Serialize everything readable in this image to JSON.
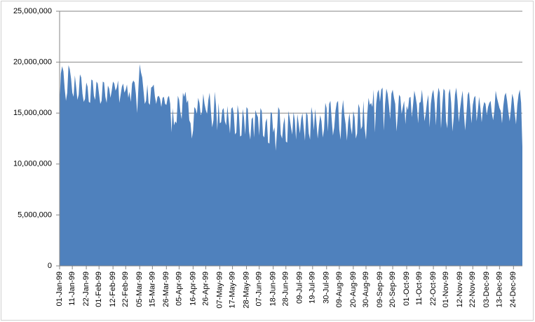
{
  "chart_data": {
    "type": "area",
    "color": "#4f81bd",
    "grid": true,
    "ylim": [
      0,
      25000000
    ],
    "yticks": [
      {
        "value": 0,
        "label": "0"
      },
      {
        "value": 5000000,
        "label": "5,000,000"
      },
      {
        "value": 10000000,
        "label": "10,000,000"
      },
      {
        "value": 15000000,
        "label": "15,000,000"
      },
      {
        "value": 20000000,
        "label": "20,000,000"
      },
      {
        "value": 25000000,
        "label": "25,000,000"
      }
    ],
    "categories": [
      "01-Jan-99",
      null,
      null,
      null,
      null,
      null,
      null,
      null,
      null,
      null,
      "11-Jan-99",
      null,
      null,
      null,
      null,
      null,
      null,
      null,
      null,
      null,
      null,
      "22-Jan-99",
      null,
      null,
      null,
      null,
      null,
      null,
      null,
      null,
      null,
      "01-Feb-99",
      null,
      null,
      null,
      null,
      null,
      null,
      null,
      null,
      null,
      null,
      "12-Feb-99",
      null,
      null,
      null,
      null,
      null,
      null,
      null,
      null,
      null,
      "22-Feb-99",
      null,
      null,
      null,
      null,
      null,
      null,
      null,
      null,
      null,
      null,
      "05-Mar-99",
      null,
      null,
      null,
      null,
      null,
      null,
      null,
      null,
      null,
      "15-Mar-99",
      null,
      null,
      null,
      null,
      null,
      null,
      null,
      null,
      null,
      null,
      "26-Mar-99",
      null,
      null,
      null,
      null,
      null,
      null,
      null,
      null,
      null,
      "05-Apr-99",
      null,
      null,
      null,
      null,
      null,
      null,
      null,
      null,
      null,
      null,
      "16-Apr-99",
      null,
      null,
      null,
      null,
      null,
      null,
      null,
      null,
      null,
      "26-Apr-99",
      null,
      null,
      null,
      null,
      null,
      null,
      null,
      null,
      null,
      null,
      "07-May-99",
      null,
      null,
      null,
      null,
      null,
      null,
      null,
      null,
      null,
      "17-May-99",
      null,
      null,
      null,
      null,
      null,
      null,
      null,
      null,
      null,
      null,
      "28-May-99",
      null,
      null,
      null,
      null,
      null,
      null,
      null,
      null,
      null,
      "07-Jun-99",
      null,
      null,
      null,
      null,
      null,
      null,
      null,
      null,
      null,
      null,
      "18-Jun-99",
      null,
      null,
      null,
      null,
      null,
      null,
      null,
      null,
      null,
      "28-Jun-99",
      null,
      null,
      null,
      null,
      null,
      null,
      null,
      null,
      null,
      null,
      "09-Jul-99",
      null,
      null,
      null,
      null,
      null,
      null,
      null,
      null,
      null,
      "19-Jul-99",
      null,
      null,
      null,
      null,
      null,
      null,
      null,
      null,
      null,
      null,
      "30-Jul-99",
      null,
      null,
      null,
      null,
      null,
      null,
      null,
      null,
      null,
      "09-Aug-99",
      null,
      null,
      null,
      null,
      null,
      null,
      null,
      null,
      null,
      null,
      "20-Aug-99",
      null,
      null,
      null,
      null,
      null,
      null,
      null,
      null,
      null,
      "30-Aug-99",
      null,
      null,
      null,
      null,
      null,
      null,
      null,
      null,
      null,
      null,
      "09-Sep-99",
      null,
      null,
      null,
      null,
      null,
      null,
      null,
      null,
      null,
      "20-Sep-99",
      null,
      null,
      null,
      null,
      null,
      null,
      null,
      null,
      null,
      null,
      "01-Oct-99",
      null,
      null,
      null,
      null,
      null,
      null,
      null,
      null,
      null,
      "11-Oct-99",
      null,
      null,
      null,
      null,
      null,
      null,
      null,
      null,
      null,
      null,
      "22-Oct-99",
      null,
      null,
      null,
      null,
      null,
      null,
      null,
      null,
      null,
      "01-Nov-99",
      null,
      null,
      null,
      null,
      null,
      null,
      null,
      null,
      null,
      null,
      "12-Nov-99",
      null,
      null,
      null,
      null,
      null,
      null,
      null,
      null,
      null,
      "22-Nov-99",
      null,
      null,
      null,
      null,
      null,
      null,
      null,
      null,
      null,
      null,
      "03-Dec-99",
      null,
      null,
      null,
      null,
      null,
      null,
      null,
      null,
      null,
      "13-Dec-99",
      null,
      null,
      null,
      null,
      null,
      null,
      null,
      null,
      null,
      null,
      "24-Dec-99",
      null,
      null,
      null,
      null,
      null,
      null,
      null
    ],
    "values": [
      16000000.0,
      18900000.0,
      19600000.0,
      19100000.0,
      17400000.0,
      16200000.0,
      17000000.0,
      19700000.0,
      19300000.0,
      18400000.0,
      17000000.0,
      16600000.0,
      18700000.0,
      17600000.0,
      16300000.0,
      16800000.0,
      18800000.0,
      18500000.0,
      16900000.0,
      16100000.0,
      16400000.0,
      18000000.0,
      17600000.0,
      16100000.0,
      16000000.0,
      18300000.0,
      18200000.0,
      16700000.0,
      16300000.0,
      18100000.0,
      17900000.0,
      16900000.0,
      15900000.0,
      16200000.0,
      18100000.0,
      18000000.0,
      16600000.0,
      16000000.0,
      17700000.0,
      17400000.0,
      16500000.0,
      17200000.0,
      18100000.0,
      17900000.0,
      17200000.0,
      17500000.0,
      18200000.0,
      16000000.0,
      16800000.0,
      17600000.0,
      17900000.0,
      17000000.0,
      17300000.0,
      17800000.0,
      16500000.0,
      17100000.0,
      16100000.0,
      17900000.0,
      18200000.0,
      18000000.0,
      16900000.0,
      15000000.0,
      17500000.0,
      19800000.0,
      19000000.0,
      18500000.0,
      17200000.0,
      15900000.0,
      16200000.0,
      17800000.0,
      16000000.0,
      15800000.0,
      17500000.0,
      17600000.0,
      17800000.0,
      16600000.0,
      15900000.0,
      16600000.0,
      16700000.0,
      16400000.0,
      15600000.0,
      16500000.0,
      16600000.0,
      15900000.0,
      15800000.0,
      16500000.0,
      16700000.0,
      15900000.0,
      13100000.0,
      15500000.0,
      13800000.0,
      14200000.0,
      14000000.0,
      16700000.0,
      16300000.0,
      15100000.0,
      14400000.0,
      17000000.0,
      16600000.0,
      17100000.0,
      16000000.0,
      16300000.0,
      14300000.0,
      14000000.0,
      12500000.0,
      13300000.0,
      15600000.0,
      15400000.0,
      14900000.0,
      16500000.0,
      16000000.0,
      14800000.0,
      15100000.0,
      16900000.0,
      15900000.0,
      15300000.0,
      14900000.0,
      16300000.0,
      17000000.0,
      15200000.0,
      13600000.0,
      14300000.0,
      17100000.0,
      15800000.0,
      13300000.0,
      16000000.0,
      14000000.0,
      14100000.0,
      15300000.0,
      15500000.0,
      14200000.0,
      13800000.0,
      15700000.0,
      14300000.0,
      13000000.0,
      15400000.0,
      15600000.0,
      14900000.0,
      12900000.0,
      13100000.0,
      15800000.0,
      15000000.0,
      12700000.0,
      12800000.0,
      15400000.0,
      14600000.0,
      12900000.0,
      15600000.0,
      15400000.0,
      13200000.0,
      12400000.0,
      14400000.0,
      14600000.0,
      12600000.0,
      15300000.0,
      14900000.0,
      14600000.0,
      12800000.0,
      15500000.0,
      15200000.0,
      12800000.0,
      12600000.0,
      14100000.0,
      14500000.0,
      12100000.0,
      12000000.0,
      15100000.0,
      15000000.0,
      13100000.0,
      13600000.0,
      11300000.0,
      13200000.0,
      15600000.0,
      15300000.0,
      12900000.0,
      12500000.0,
      13900000.0,
      14600000.0,
      12200000.0,
      12100000.0,
      15200000.0,
      14500000.0,
      13600000.0,
      12900000.0,
      15100000.0,
      14300000.0,
      12400000.0,
      14900000.0,
      14000000.0,
      13000000.0,
      14400000.0,
      15000000.0,
      13600000.0,
      12300000.0,
      15100000.0,
      14800000.0,
      13000000.0,
      12400000.0,
      15600000.0,
      14900000.0,
      13300000.0,
      15400000.0,
      14100000.0,
      12500000.0,
      13800000.0,
      14800000.0,
      14200000.0,
      12600000.0,
      13400000.0,
      16000000.0,
      15500000.0,
      13200000.0,
      15900000.0,
      16200000.0,
      14400000.0,
      12800000.0,
      13600000.0,
      15200000.0,
      16000000.0,
      16200000.0,
      13400000.0,
      12400000.0,
      15200000.0,
      16300000.0,
      14800000.0,
      13900000.0,
      12300000.0,
      14100000.0,
      15000000.0,
      13600000.0,
      12900000.0,
      15200000.0,
      14600000.0,
      12500000.0,
      13000000.0,
      15900000.0,
      15500000.0,
      13400000.0,
      13700000.0,
      16200000.0,
      13500000.0,
      12400000.0,
      14900000.0,
      16500000.0,
      15800000.0,
      16000000.0,
      15600000.0,
      17300000.0,
      13100000.0,
      15900000.0,
      17000000.0,
      17300000.0,
      16100000.0,
      17300000.0,
      17500000.0,
      13300000.0,
      15900000.0,
      17400000.0,
      16900000.0,
      15800000.0,
      14400000.0,
      16900000.0,
      17300000.0,
      16500000.0,
      15900000.0,
      13200000.0,
      14800000.0,
      16800000.0,
      16600000.0,
      14900000.0,
      15600000.0,
      16200000.0,
      13900000.0,
      15700000.0,
      15300000.0,
      16500000.0,
      16600000.0,
      14600000.0,
      15800000.0,
      17200000.0,
      16600000.0,
      15800000.0,
      14000000.0,
      16000000.0,
      16100000.0,
      17300000.0,
      15900000.0,
      14200000.0,
      15000000.0,
      16100000.0,
      16800000.0,
      13600000.0,
      15900000.0,
      16900000.0,
      17300000.0,
      16000000.0,
      13800000.0,
      16400000.0,
      17500000.0,
      17000000.0,
      13500000.0,
      15800000.0,
      17400000.0,
      17200000.0,
      14200000.0,
      13500000.0,
      16900000.0,
      17400000.0,
      16000000.0,
      13200000.0,
      14600000.0,
      16800000.0,
      17500000.0,
      16200000.0,
      14100000.0,
      15400000.0,
      16400000.0,
      17200000.0,
      15000000.0,
      13300000.0,
      14900000.0,
      16800000.0,
      17100000.0,
      15600000.0,
      14000000.0,
      15800000.0,
      16500000.0,
      16700000.0,
      14200000.0,
      15300000.0,
      16600000.0,
      15500000.0,
      14100000.0,
      15500000.0,
      16100000.0,
      15900000.0,
      14800000.0,
      15600000.0,
      16000000.0,
      16200000.0,
      15000000.0,
      14300000.0,
      15300000.0,
      17200000.0,
      16500000.0,
      16000000.0,
      15500000.0,
      15200000.0,
      14000000.0,
      15700000.0,
      16700000.0,
      17000000.0,
      16200000.0,
      15100000.0,
      14200000.0,
      15400000.0,
      16900000.0,
      16400000.0,
      15000000.0,
      13900000.0,
      15800000.0,
      16800000.0,
      17300000.0,
      16000000.0,
      11700000.0
    ]
  }
}
